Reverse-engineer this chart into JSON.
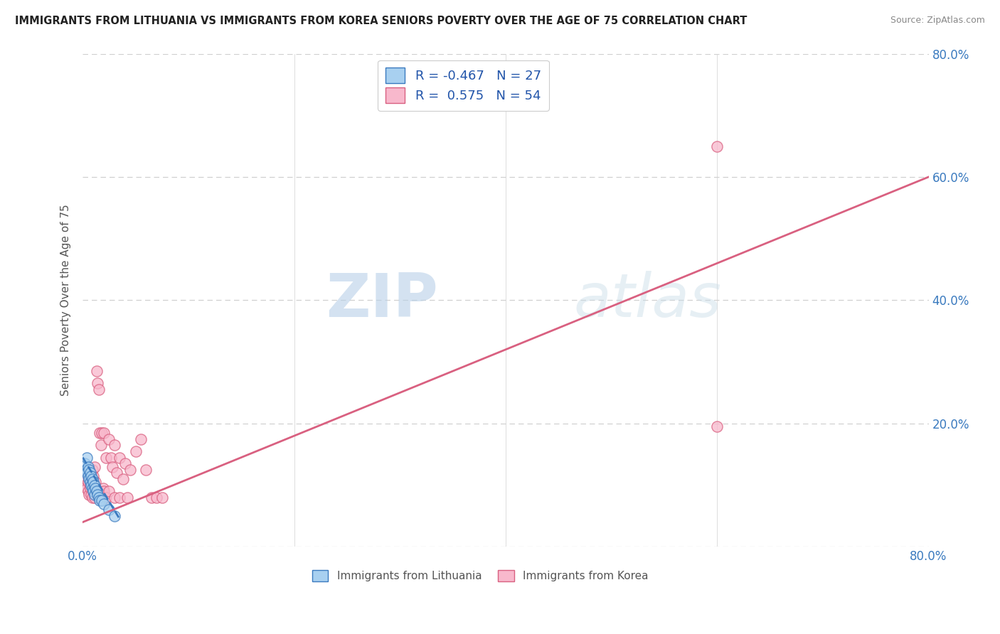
{
  "title": "IMMIGRANTS FROM LITHUANIA VS IMMIGRANTS FROM KOREA SENIORS POVERTY OVER THE AGE OF 75 CORRELATION CHART",
  "source": "Source: ZipAtlas.com",
  "ylabel": "Seniors Poverty Over the Age of 75",
  "xmin": 0.0,
  "xmax": 0.8,
  "ymin": 0.0,
  "ymax": 0.8,
  "legend_r_lithuania": "-0.467",
  "legend_n_lithuania": "27",
  "legend_r_korea": "0.575",
  "legend_n_korea": "54",
  "lithuania_color": "#a8d0f0",
  "korea_color": "#f8b8cc",
  "trend_lithuania_color": "#3a7abf",
  "trend_korea_color": "#d96080",
  "watermark_zip": "ZIP",
  "watermark_atlas": "atlas",
  "background_color": "#ffffff",
  "grid_color": "#d0d0d0",
  "lithuania_points_x": [
    0.002,
    0.003,
    0.004,
    0.004,
    0.005,
    0.005,
    0.006,
    0.006,
    0.007,
    0.007,
    0.008,
    0.008,
    0.009,
    0.009,
    0.01,
    0.01,
    0.011,
    0.011,
    0.012,
    0.013,
    0.014,
    0.015,
    0.016,
    0.018,
    0.02,
    0.025,
    0.03
  ],
  "lithuania_points_y": [
    0.135,
    0.125,
    0.145,
    0.12,
    0.13,
    0.115,
    0.125,
    0.11,
    0.12,
    0.105,
    0.115,
    0.1,
    0.11,
    0.095,
    0.105,
    0.09,
    0.1,
    0.085,
    0.095,
    0.09,
    0.085,
    0.08,
    0.075,
    0.075,
    0.07,
    0.06,
    0.05
  ],
  "korea_points_x": [
    0.002,
    0.003,
    0.004,
    0.005,
    0.005,
    0.006,
    0.006,
    0.007,
    0.007,
    0.008,
    0.008,
    0.009,
    0.009,
    0.01,
    0.01,
    0.011,
    0.011,
    0.012,
    0.012,
    0.013,
    0.013,
    0.014,
    0.015,
    0.015,
    0.016,
    0.016,
    0.017,
    0.018,
    0.019,
    0.02,
    0.02,
    0.022,
    0.022,
    0.025,
    0.025,
    0.027,
    0.028,
    0.03,
    0.03,
    0.032,
    0.035,
    0.035,
    0.038,
    0.04,
    0.042,
    0.045,
    0.05,
    0.055,
    0.06,
    0.065,
    0.07,
    0.075,
    0.6,
    0.6
  ],
  "korea_points_y": [
    0.1,
    0.11,
    0.095,
    0.105,
    0.09,
    0.115,
    0.085,
    0.1,
    0.095,
    0.12,
    0.085,
    0.125,
    0.08,
    0.115,
    0.09,
    0.13,
    0.08,
    0.105,
    0.095,
    0.285,
    0.09,
    0.265,
    0.255,
    0.09,
    0.185,
    0.09,
    0.165,
    0.185,
    0.095,
    0.185,
    0.09,
    0.145,
    0.08,
    0.175,
    0.09,
    0.145,
    0.13,
    0.165,
    0.08,
    0.12,
    0.145,
    0.08,
    0.11,
    0.135,
    0.08,
    0.125,
    0.155,
    0.175,
    0.125,
    0.08,
    0.08,
    0.08,
    0.65,
    0.195
  ],
  "korea_trend_x0": 0.0,
  "korea_trend_x1": 0.8,
  "korea_trend_y0": 0.04,
  "korea_trend_y1": 0.6,
  "lith_trend_x0": 0.0,
  "lith_trend_x1": 0.035,
  "lith_trend_y0": 0.145,
  "lith_trend_y1": 0.045
}
